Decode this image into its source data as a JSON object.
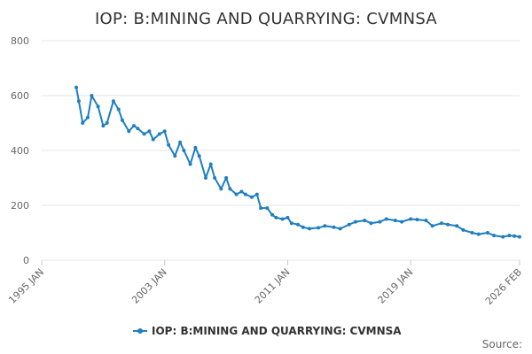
{
  "chart_data": {
    "type": "line",
    "title": "IOP: B:MINING AND QUARRYING: CVMNSA",
    "xlabel": "",
    "ylabel": "",
    "ylim": [
      0,
      800
    ],
    "y_ticks": [
      0,
      200,
      400,
      600,
      800
    ],
    "xlim": [
      "1995-01",
      "2026-02"
    ],
    "x_ticks": [
      "1995 JAN",
      "2003 JAN",
      "2011 JAN",
      "2019 JAN",
      "2026 FEB"
    ],
    "grid": true,
    "legend_position": "bottom",
    "source_label": "Source:",
    "colors": {
      "series": "#1f7fc0",
      "grid": "#e6e6e6"
    },
    "series": [
      {
        "name": "IOP: B:MINING AND QUARRYING: CVMNSA",
        "x": [
          "1997-04",
          "1997-06",
          "1997-09",
          "1998-01",
          "1998-04",
          "1998-09",
          "1999-01",
          "1999-04",
          "1999-09",
          "2000-01",
          "2000-04",
          "2000-09",
          "2001-01",
          "2001-04",
          "2001-09",
          "2002-01",
          "2002-04",
          "2002-09",
          "2003-01",
          "2003-04",
          "2003-09",
          "2004-01",
          "2004-04",
          "2004-09",
          "2005-01",
          "2005-04",
          "2005-09",
          "2006-01",
          "2006-04",
          "2006-09",
          "2007-01",
          "2007-04",
          "2007-09",
          "2008-01",
          "2008-04",
          "2008-09",
          "2009-01",
          "2009-04",
          "2009-09",
          "2010-01",
          "2010-04",
          "2010-09",
          "2011-01",
          "2011-04",
          "2011-09",
          "2012-01",
          "2012-06",
          "2013-01",
          "2013-06",
          "2014-01",
          "2014-06",
          "2015-01",
          "2015-06",
          "2016-01",
          "2016-06",
          "2017-01",
          "2017-06",
          "2018-01",
          "2018-06",
          "2019-01",
          "2019-06",
          "2020-01",
          "2020-06",
          "2021-01",
          "2021-06",
          "2022-01",
          "2022-06",
          "2023-01",
          "2023-06",
          "2024-01",
          "2024-06",
          "2025-01",
          "2025-06",
          "2025-10",
          "2026-02"
        ],
        "values": [
          630,
          580,
          500,
          520,
          600,
          560,
          490,
          500,
          580,
          550,
          510,
          470,
          490,
          480,
          460,
          470,
          440,
          460,
          470,
          420,
          380,
          430,
          400,
          350,
          410,
          380,
          300,
          350,
          300,
          260,
          300,
          260,
          240,
          250,
          240,
          230,
          240,
          190,
          190,
          165,
          155,
          150,
          155,
          135,
          130,
          120,
          115,
          118,
          125,
          120,
          115,
          130,
          140,
          145,
          135,
          140,
          150,
          145,
          140,
          150,
          148,
          145,
          125,
          135,
          130,
          125,
          110,
          100,
          95,
          100,
          90,
          85,
          90,
          88,
          85
        ]
      }
    ]
  }
}
